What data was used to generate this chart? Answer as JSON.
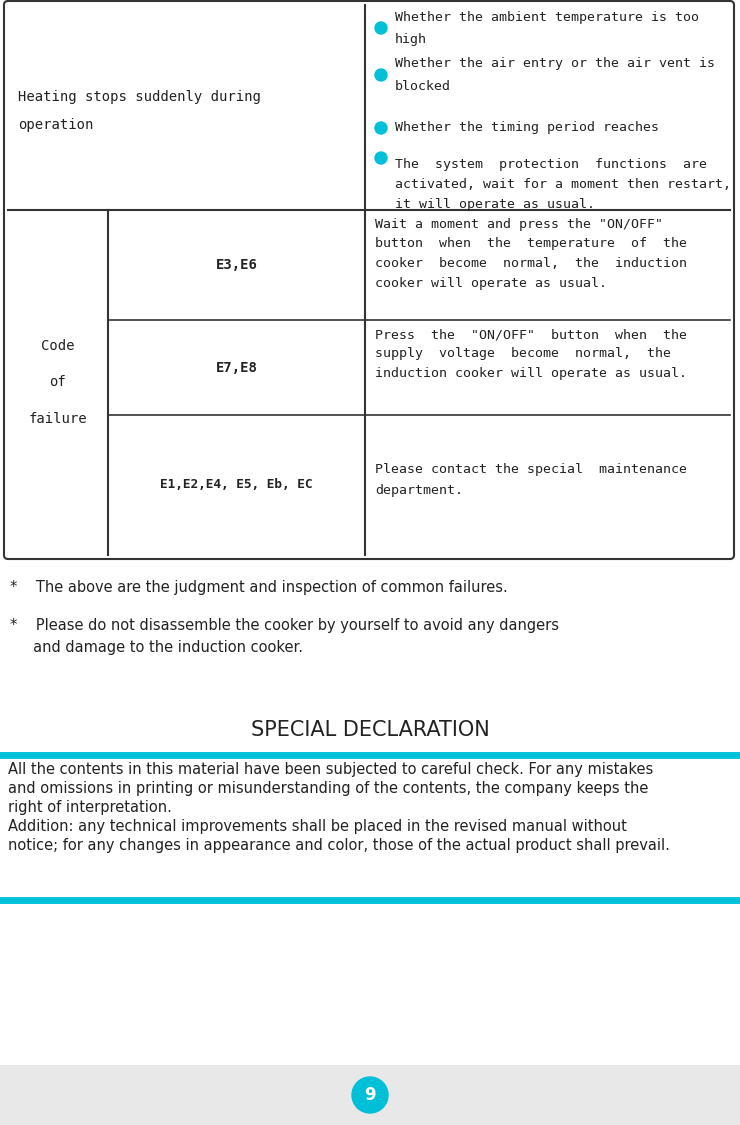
{
  "bg_color": "#e8e8e8",
  "page_bg": "#ffffff",
  "cyan_color": "#00c0d8",
  "text_color": "#222222",
  "table_border_color": "#333333",
  "page_number": "9",
  "row1_left_text": "Heating stops suddenly during\n\noperation",
  "row1_bullets": [
    "Whether the ambient temperature is too\nhigh",
    "Whether the air entry or the air vent is\nblocked",
    "Whether the timing period reaches",
    "The  system  protection  functions  are\nactivated, wait for a moment then restart,\nit will operate as usual."
  ],
  "code_label": "Code\n\nof\n\nfailure",
  "row2_code": "E3,E6",
  "row2_text": "Wait a moment and press the \"ON/OFF\"\nbutton  when  the  temperature  of  the\ncooker  become  normal,  the  induction\ncooker will operate as usual.",
  "row3_code": "E7,E8",
  "row3_text": "Press  the  \"ON/OFF\"  button  when  the\nsupply  voltage  become  normal,  the\ninduction cooker will operate as usual.",
  "row4_code": "E1,E2,E4, E5, Eb, EC",
  "row4_text": "Please contact the special  maintenance\ndepartment.",
  "note1": "*    The above are the judgment and inspection of common failures.",
  "note2_line1": "*    Please do not disassemble the cooker by yourself to avoid any dangers",
  "note2_line2": "     and damage to the induction cooker.",
  "special_decl_title": "SPECIAL DECLARATION",
  "decl_text1_line1": "All the contents in this material have been subjected to careful check. For any mistakes",
  "decl_text1_line2": "and omissions in printing or misunderstanding of the contents, the company keeps the",
  "decl_text1_line3": "right of interpretation.",
  "decl_text2_line1": "Addition: any technical improvements shall be placed in the revised manual without",
  "decl_text2_line2": "notice; for any changes in appearance and color, those of the actual product shall prevail."
}
